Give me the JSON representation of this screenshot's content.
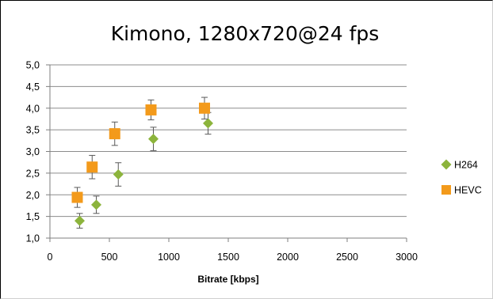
{
  "chart_data": {
    "type": "scatter",
    "title": "Kimono, 1280x720@24 fps",
    "xlabel": "Bitrate [kbps]",
    "ylabel": "",
    "xlim": [
      0,
      3000
    ],
    "ylim": [
      1.0,
      5.0
    ],
    "x_ticks": [
      0,
      500,
      1000,
      1500,
      2000,
      2500,
      3000
    ],
    "x_tick_labels": [
      "0",
      "500",
      "1000",
      "1500",
      "2000",
      "2500",
      "3000"
    ],
    "y_ticks": [
      1.0,
      1.5,
      2.0,
      2.5,
      3.0,
      3.5,
      4.0,
      4.5,
      5.0
    ],
    "y_tick_labels": [
      "1,0",
      "1,5",
      "2,0",
      "2,5",
      "3,0",
      "3,5",
      "4,0",
      "4,5",
      "5,0"
    ],
    "grid": "horizontal",
    "legend_position": "right",
    "series": [
      {
        "name": "H264",
        "marker": "diamond",
        "color": "#8cb43c",
        "points": [
          {
            "x": 250,
            "y": 1.4,
            "err": 0.17
          },
          {
            "x": 390,
            "y": 1.77,
            "err": 0.2
          },
          {
            "x": 575,
            "y": 2.47,
            "err": 0.27
          },
          {
            "x": 870,
            "y": 3.29,
            "err": 0.27
          },
          {
            "x": 1330,
            "y": 3.65,
            "err": 0.25
          }
        ]
      },
      {
        "name": "HEVC",
        "marker": "square",
        "color": "#f39a1b",
        "points": [
          {
            "x": 230,
            "y": 1.94,
            "err": 0.23
          },
          {
            "x": 355,
            "y": 2.64,
            "err": 0.27
          },
          {
            "x": 545,
            "y": 3.41,
            "err": 0.27
          },
          {
            "x": 850,
            "y": 3.96,
            "err": 0.23
          },
          {
            "x": 1300,
            "y": 4.0,
            "err": 0.25
          }
        ]
      }
    ]
  },
  "colors": {
    "gridline": "#8c8c8c",
    "axis": "#7f7f7f",
    "error_bar": "#595959"
  }
}
